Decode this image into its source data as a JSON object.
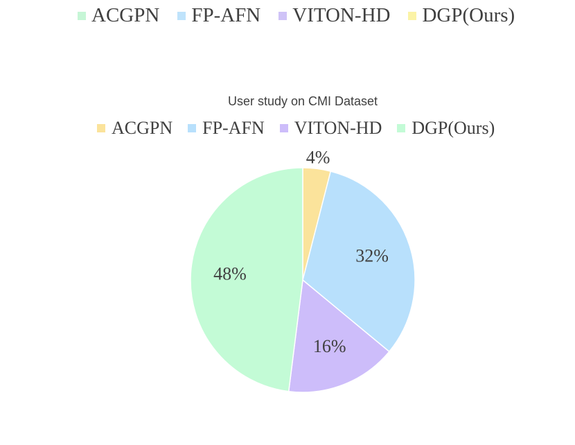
{
  "top_legend": [
    {
      "label": "ACGPN",
      "color": "#c6f6d6"
    },
    {
      "label": "FP-AFN",
      "color": "#bfe3fb"
    },
    {
      "label": "VITON-HD",
      "color": "#cfc3f7"
    },
    {
      "label": "DGP(Ours)",
      "color": "#fbf3a6"
    }
  ],
  "chart_data": {
    "type": "pie",
    "title": "User study on CMI Dataset",
    "legend_placement": "top",
    "slices": [
      {
        "label": "ACGPN",
        "value": 4,
        "color": "#fbe39b",
        "data_label": "4%"
      },
      {
        "label": "FP-AFN",
        "value": 32,
        "color": "#b8e0fc",
        "data_label": "32%"
      },
      {
        "label": "VITON-HD",
        "value": 16,
        "color": "#cdbdfa",
        "data_label": "16%"
      },
      {
        "label": "DGP(Ours)",
        "value": 48,
        "color": "#c3fbd6",
        "data_label": "48%"
      }
    ]
  }
}
